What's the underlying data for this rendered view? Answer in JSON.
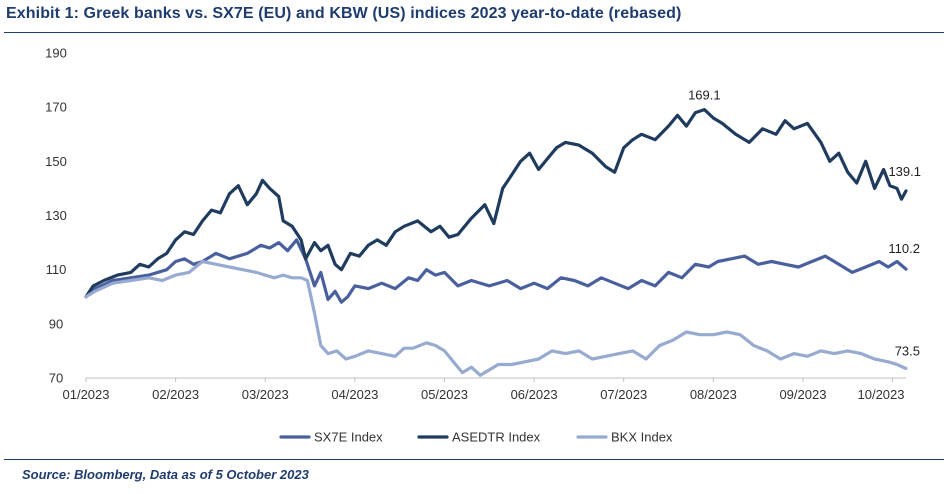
{
  "chart_data": {
    "type": "line",
    "title": "Exhibit 1: Greek banks vs. SX7E (EU) and KBW (US) indices 2023 year-to-date (rebased)",
    "source": "Source: Bloomberg, Data as of 5 October 2023",
    "xlabel": "",
    "ylabel": "",
    "ylim": [
      70,
      190
    ],
    "yticks": [
      70,
      90,
      110,
      130,
      150,
      170,
      190
    ],
    "xlim": [
      0,
      9.15
    ],
    "xticks": [
      {
        "pos": 0,
        "label": "01/2023"
      },
      {
        "pos": 1,
        "label": "02/2023"
      },
      {
        "pos": 2,
        "label": "03/2023"
      },
      {
        "pos": 3,
        "label": "04/2023"
      },
      {
        "pos": 4,
        "label": "05/2023"
      },
      {
        "pos": 5,
        "label": "06/2023"
      },
      {
        "pos": 6,
        "label": "07/2023"
      },
      {
        "pos": 7,
        "label": "08/2023"
      },
      {
        "pos": 8,
        "label": "09/2023"
      },
      {
        "pos": 9,
        "label": "10/2023"
      }
    ],
    "legend_position": "bottom-center",
    "series": [
      {
        "name": "SX7E Index",
        "color": "#4a5f9e",
        "x": [
          0,
          0.1,
          0.3,
          0.5,
          0.7,
          0.9,
          1.0,
          1.1,
          1.2,
          1.3,
          1.45,
          1.6,
          1.8,
          1.95,
          2.05,
          2.15,
          2.25,
          2.35,
          2.45,
          2.55,
          2.62,
          2.7,
          2.78,
          2.85,
          2.92,
          3.0,
          3.15,
          3.3,
          3.45,
          3.6,
          3.7,
          3.8,
          3.9,
          4.0,
          4.15,
          4.3,
          4.5,
          4.7,
          4.85,
          5.0,
          5.15,
          5.3,
          5.45,
          5.6,
          5.75,
          5.9,
          6.05,
          6.2,
          6.35,
          6.5,
          6.65,
          6.8,
          6.95,
          7.05,
          7.2,
          7.35,
          7.5,
          7.65,
          7.8,
          7.95,
          8.1,
          8.25,
          8.4,
          8.55,
          8.7,
          8.85,
          8.95,
          9.05,
          9.15
        ],
        "values": [
          100,
          103,
          106,
          107,
          108,
          110,
          113,
          114,
          112,
          113,
          116,
          114,
          116,
          119,
          118,
          120,
          117,
          121,
          114,
          104,
          109,
          99,
          102,
          98,
          100,
          104,
          103,
          105,
          103,
          107,
          106,
          110,
          108,
          109,
          104,
          106,
          104,
          106,
          103,
          105,
          103,
          107,
          106,
          104,
          107,
          105,
          103,
          106,
          104,
          109,
          107,
          112,
          111,
          113,
          114,
          115,
          112,
          113,
          112,
          111,
          113,
          115,
          112,
          109,
          111,
          113,
          111,
          113,
          110.2
        ]
      },
      {
        "name": "ASEDTR Index",
        "color": "#1f3c5e",
        "x": [
          0,
          0.08,
          0.2,
          0.35,
          0.5,
          0.6,
          0.7,
          0.8,
          0.9,
          1.0,
          1.1,
          1.2,
          1.3,
          1.4,
          1.5,
          1.6,
          1.7,
          1.8,
          1.9,
          1.97,
          2.05,
          2.15,
          2.2,
          2.3,
          2.4,
          2.45,
          2.55,
          2.62,
          2.7,
          2.78,
          2.85,
          2.95,
          3.05,
          3.15,
          3.25,
          3.35,
          3.45,
          3.55,
          3.7,
          3.85,
          3.95,
          4.05,
          4.15,
          4.3,
          4.45,
          4.55,
          4.65,
          4.75,
          4.85,
          4.95,
          5.05,
          5.15,
          5.25,
          5.35,
          5.5,
          5.65,
          5.8,
          5.9,
          6.0,
          6.1,
          6.2,
          6.35,
          6.5,
          6.6,
          6.7,
          6.8,
          6.9,
          7.0,
          7.1,
          7.25,
          7.4,
          7.55,
          7.7,
          7.8,
          7.9,
          8.05,
          8.2,
          8.3,
          8.4,
          8.5,
          8.6,
          8.7,
          8.8,
          8.9,
          8.97,
          9.05,
          9.1,
          9.15
        ],
        "values": [
          100,
          104,
          106,
          108,
          109,
          112,
          111,
          114,
          116,
          121,
          124,
          123,
          128,
          132,
          131,
          138,
          141,
          134,
          138,
          143,
          140,
          137,
          128,
          126,
          121,
          114,
          120,
          117,
          119,
          112,
          110,
          116,
          115,
          119,
          121,
          119,
          124,
          126,
          128,
          124,
          126,
          122,
          123,
          129,
          134,
          127,
          140,
          145,
          150,
          153,
          147,
          151,
          155,
          157,
          156,
          153,
          148,
          146,
          155,
          158,
          160,
          158,
          163,
          167,
          163,
          168,
          169.1,
          166,
          164,
          160,
          157,
          162,
          160,
          165,
          162,
          164,
          157,
          150,
          153,
          146,
          142,
          150,
          140,
          147,
          141,
          140,
          136,
          139.1
        ]
      },
      {
        "name": "BKX Index",
        "color": "#97aad0",
        "x": [
          0,
          0.1,
          0.3,
          0.5,
          0.7,
          0.85,
          1.0,
          1.15,
          1.3,
          1.45,
          1.6,
          1.75,
          1.9,
          2.0,
          2.1,
          2.2,
          2.3,
          2.4,
          2.47,
          2.55,
          2.62,
          2.7,
          2.8,
          2.9,
          3.0,
          3.15,
          3.3,
          3.45,
          3.55,
          3.65,
          3.8,
          3.9,
          4.0,
          4.1,
          4.2,
          4.3,
          4.4,
          4.5,
          4.6,
          4.75,
          4.9,
          5.05,
          5.2,
          5.35,
          5.5,
          5.65,
          5.8,
          5.95,
          6.1,
          6.25,
          6.4,
          6.55,
          6.7,
          6.85,
          7.0,
          7.15,
          7.3,
          7.45,
          7.6,
          7.75,
          7.9,
          8.05,
          8.2,
          8.35,
          8.5,
          8.65,
          8.8,
          8.95,
          9.05,
          9.15
        ],
        "values": [
          100,
          102,
          105,
          106,
          107,
          106,
          108,
          109,
          113,
          112,
          111,
          110,
          109,
          108,
          107,
          108,
          107,
          107,
          106,
          94,
          82,
          79,
          80,
          77,
          78,
          80,
          79,
          78,
          81,
          81,
          83,
          82,
          80,
          76,
          72,
          74,
          71,
          73,
          75,
          75,
          76,
          77,
          80,
          79,
          80,
          77,
          78,
          79,
          80,
          77,
          82,
          84,
          87,
          86,
          86,
          87,
          86,
          82,
          80,
          77,
          79,
          78,
          80,
          79,
          80,
          79,
          77,
          76,
          75,
          73.5
        ]
      }
    ],
    "annotations": [
      {
        "series": "ASEDTR Index",
        "x": 6.9,
        "value": 169.1,
        "label": "169.1"
      },
      {
        "series": "ASEDTR Index",
        "x": 9.15,
        "value": 139.1,
        "label": "139.1"
      },
      {
        "series": "SX7E Index",
        "x": 9.15,
        "value": 110.2,
        "label": "110.2"
      },
      {
        "series": "BKX Index",
        "x": 9.15,
        "value": 73.5,
        "label": "73.5"
      }
    ]
  }
}
